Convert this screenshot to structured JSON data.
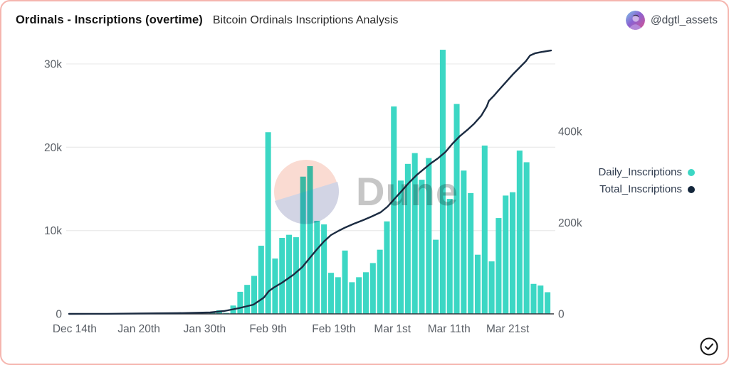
{
  "header": {
    "title": "Ordinals - Inscriptions (overtime)",
    "subtitle": "Bitcoin Ordinals Inscriptions Analysis",
    "author_handle": "@dgtl_assets",
    "avatar_icon": "person-avatar"
  },
  "watermark": {
    "logo_icon": "dune-logo",
    "text": "Dune"
  },
  "legend": {
    "items": [
      {
        "label": "Daily_Inscriptions",
        "color": "#3cd7c4"
      },
      {
        "label": "Total_Inscriptions",
        "color": "#13263b"
      }
    ]
  },
  "footer": {
    "check_icon": "circle-check"
  },
  "colors": {
    "card_border": "#f5b5ae",
    "bar": "#3cd7c4",
    "line": "#1b2b41",
    "grid": "#ececec",
    "baseline": "#33373d",
    "axis_text": "#5a5f66",
    "watermark_peach": "#fadbd2",
    "watermark_lavender": "#d2d4e4",
    "watermark_text": "#c6c6c6"
  },
  "chart_data": {
    "type": "bar",
    "title": "Ordinals - Inscriptions (overtime)",
    "subtitle": "Bitcoin Ordinals Inscriptions Analysis",
    "grid": "horizontal",
    "legend_position": "right",
    "x_ticks": [
      {
        "label": "Dec 14th",
        "i": 0.3
      },
      {
        "label": "Jan 20th",
        "i": 9.5
      },
      {
        "label": "Jan 30th",
        "i": 18.9
      },
      {
        "label": "Feb 9th",
        "i": 28.0
      },
      {
        "label": "Feb 19th",
        "i": 37.4
      },
      {
        "label": "Mar 1st",
        "i": 45.8
      },
      {
        "label": "Mar 11th",
        "i": 53.9
      },
      {
        "label": "Mar 21st",
        "i": 62.3
      }
    ],
    "y_left": {
      "labels": [
        "0",
        "10k",
        "20k",
        "30k"
      ],
      "ticks": [
        0,
        10000,
        20000,
        30000
      ],
      "max": 32400
    },
    "y_right": {
      "labels": [
        "0",
        "200k",
        "400k"
      ],
      "ticks": [
        0,
        200000,
        400000
      ],
      "max": 591000
    },
    "series": [
      {
        "name": "Daily_Inscriptions",
        "type": "bar",
        "axis": "left",
        "values": [
          0,
          0,
          0,
          0,
          0,
          0,
          0,
          0,
          0,
          0,
          0,
          0,
          0,
          0,
          0,
          0,
          0,
          0,
          0,
          0,
          230,
          430,
          120,
          1000,
          2650,
          3480,
          4560,
          8180,
          21800,
          6640,
          9120,
          9490,
          9200,
          16470,
          17730,
          11170,
          10740,
          4930,
          4400,
          7600,
          3800,
          4400,
          5000,
          6100,
          7700,
          11100,
          24900,
          16000,
          18000,
          19300,
          16100,
          18700,
          8900,
          31700,
          13800,
          25200,
          17200,
          14500,
          7100,
          20200,
          6300,
          11500,
          14200,
          14600,
          19600,
          18200,
          3600,
          3400,
          2600
        ]
      },
      {
        "name": "Total_Inscriptions",
        "type": "line",
        "axis": "right",
        "points": [
          [
            -0.5,
            0
          ],
          [
            5,
            100
          ],
          [
            9.5,
            900
          ],
          [
            15,
            1500
          ],
          [
            19.7,
            3100
          ],
          [
            21.7,
            6200
          ],
          [
            23.8,
            12400
          ],
          [
            25.9,
            20200
          ],
          [
            27.4,
            35800
          ],
          [
            28.1,
            49800
          ],
          [
            28.8,
            57600
          ],
          [
            30,
            68500
          ],
          [
            31.6,
            85600
          ],
          [
            32.9,
            102700
          ],
          [
            33.9,
            121400
          ],
          [
            35,
            141600
          ],
          [
            36,
            158700
          ],
          [
            37,
            172700
          ],
          [
            38.1,
            182100
          ],
          [
            39.1,
            189800
          ],
          [
            40.3,
            197600
          ],
          [
            41.6,
            205400
          ],
          [
            42.8,
            213200
          ],
          [
            44.1,
            222500
          ],
          [
            45.1,
            235000
          ],
          [
            46.1,
            252100
          ],
          [
            47.2,
            270700
          ],
          [
            48.2,
            287900
          ],
          [
            49.2,
            303400
          ],
          [
            50.3,
            317400
          ],
          [
            51.3,
            329900
          ],
          [
            52.3,
            340800
          ],
          [
            53.4,
            354800
          ],
          [
            54.4,
            373400
          ],
          [
            55.4,
            389000
          ],
          [
            56.5,
            403000
          ],
          [
            57.5,
            417000
          ],
          [
            58.5,
            434100
          ],
          [
            59.3,
            454400
          ],
          [
            59.6,
            466800
          ],
          [
            60.3,
            477700
          ],
          [
            61,
            490100
          ],
          [
            62.1,
            508800
          ],
          [
            63.1,
            525900
          ],
          [
            64.1,
            541500
          ],
          [
            64.9,
            553900
          ],
          [
            65.5,
            566400
          ],
          [
            66.2,
            571100
          ],
          [
            67.2,
            574200
          ],
          [
            68.5,
            577300
          ]
        ]
      }
    ]
  }
}
